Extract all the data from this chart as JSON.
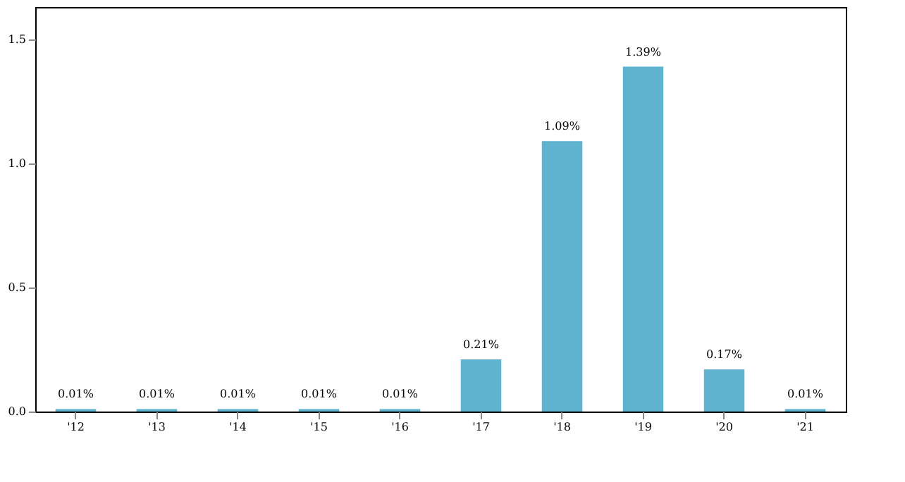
{
  "chart_data": {
    "type": "bar",
    "categories": [
      "'12",
      "'13",
      "'14",
      "'15",
      "'16",
      "'17",
      "'18",
      "'19",
      "'20",
      "'21"
    ],
    "values": [
      0.01,
      0.01,
      0.01,
      0.01,
      0.01,
      0.21,
      1.09,
      1.39,
      0.17,
      0.01
    ],
    "value_labels": [
      "0.01%",
      "0.01%",
      "0.01%",
      "0.01%",
      "0.01%",
      "0.21%",
      "1.09%",
      "1.39%",
      "0.17%",
      "0.01%"
    ],
    "color": "#5fb3cf",
    "ylim": [
      0,
      1.63
    ],
    "yticks": [
      {
        "value": 0,
        "label": "0.0"
      },
      {
        "value": 0.5,
        "label": "0.5"
      },
      {
        "value": 1,
        "label": "1.0"
      },
      {
        "value": 1.5,
        "label": "1.5"
      }
    ],
    "grid": false
  }
}
